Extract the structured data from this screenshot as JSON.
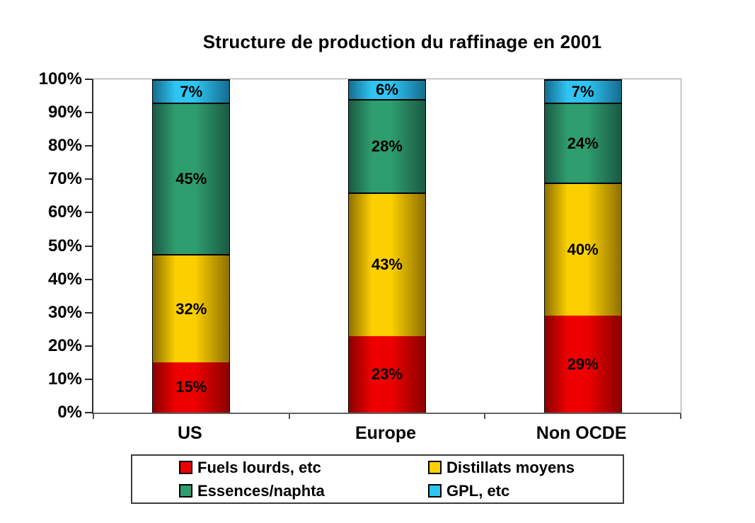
{
  "chart_data": {
    "type": "bar",
    "stacked": true,
    "percent_stacked": true,
    "title": "Structure de production du raffinage en 2001",
    "categories": [
      "US",
      "Europe",
      "Non OCDE"
    ],
    "series": [
      {
        "name": "Fuels lourds, etc",
        "color": "#ee0000",
        "color_dark": "#8b0000",
        "values": [
          15,
          23,
          29
        ],
        "labels": [
          "15%",
          "23%",
          "29%"
        ]
      },
      {
        "name": "Distillats moyens",
        "color": "#fcd000",
        "color_dark": "#8f7000",
        "values": [
          32,
          43,
          40
        ],
        "labels": [
          "32%",
          "43%",
          "40%"
        ]
      },
      {
        "name": "Essences/naphta",
        "color": "#2f9e6e",
        "color_dark": "#1b5a43",
        "values": [
          45,
          28,
          24
        ],
        "labels": [
          "45%",
          "28%",
          "24%"
        ]
      },
      {
        "name": "GPL, etc",
        "color": "#2fc5f2",
        "color_dark": "#156c8f",
        "values": [
          7,
          6,
          7
        ],
        "labels": [
          "7%",
          "6%",
          "7%"
        ]
      }
    ],
    "xlabel": "",
    "ylabel": "",
    "ylim": [
      0,
      100
    ],
    "yticks": [
      "0%",
      "10%",
      "20%",
      "30%",
      "40%",
      "50%",
      "60%",
      "70%",
      "80%",
      "90%",
      "100%"
    ],
    "grid": false,
    "legend_position": "bottom",
    "background": "#ffffff",
    "label_color": "#000000"
  }
}
